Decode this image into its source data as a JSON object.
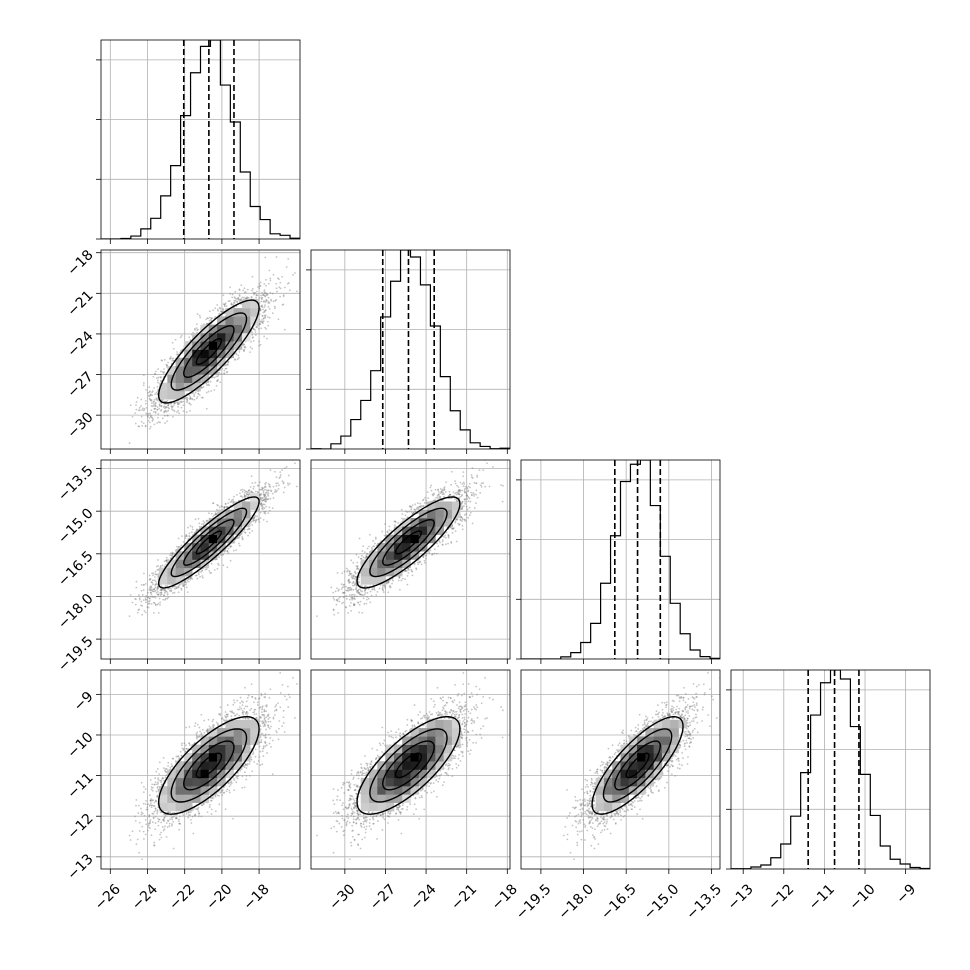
{
  "chart_data": {
    "type": "corner",
    "grid": true,
    "parameters": [
      {
        "mean": -20.7,
        "sigma": 1.35,
        "range": [
          -26.5,
          -15.8
        ],
        "ticks": [
          -26,
          -24,
          -22,
          -20,
          -18
        ],
        "tick_labels": [
          "−26",
          "−24",
          "−22",
          "−20",
          "−18"
        ],
        "quantiles": [
          -22.05,
          -20.7,
          -19.35
        ]
      },
      {
        "mean": -25.3,
        "sigma": 1.9,
        "range": [
          -32.5,
          -17.8
        ],
        "ticks": [
          -30,
          -27,
          -24,
          -21,
          -18
        ],
        "tick_labels": [
          "−30",
          "−27",
          "−24",
          "−21",
          "−18"
        ],
        "quantiles": [
          -27.2,
          -25.3,
          -23.4
        ]
      },
      {
        "mean": -16.1,
        "sigma": 0.8,
        "range": [
          -20.2,
          -13.2
        ],
        "ticks": [
          -19.5,
          -18.0,
          -16.5,
          -15.0,
          -13.5
        ],
        "tick_labels": [
          "−19.5",
          "−18.0",
          "−16.5",
          "−15.0",
          "−13.5"
        ],
        "quantiles": [
          -16.9,
          -16.1,
          -15.3
        ]
      },
      {
        "mean": -10.75,
        "sigma": 0.6,
        "range": [
          -13.3,
          -8.4
        ],
        "ticks": [
          -13,
          -12,
          -11,
          -10,
          -9
        ],
        "tick_labels": [
          "−13",
          "−12",
          "−11",
          "−10",
          "−9"
        ],
        "quantiles": [
          -11.4,
          -10.75,
          -10.15
        ]
      }
    ],
    "correlations": [
      [
        1.0,
        0.85,
        0.9,
        0.75
      ],
      [
        0.85,
        1.0,
        0.85,
        0.75
      ],
      [
        0.9,
        0.85,
        1.0,
        0.8
      ],
      [
        0.75,
        0.75,
        0.8,
        1.0
      ]
    ],
    "histogram": {
      "bins": 20,
      "style": "step",
      "diag_ytick_fractions": [
        0.0,
        0.3,
        0.6,
        0.9
      ]
    },
    "contour_sigma_levels": [
      0.5,
      1.0,
      1.5,
      2.0
    ],
    "colors": {
      "line": "#000000",
      "points": "#7f7f7f",
      "grid": "#b0b0b0"
    }
  }
}
